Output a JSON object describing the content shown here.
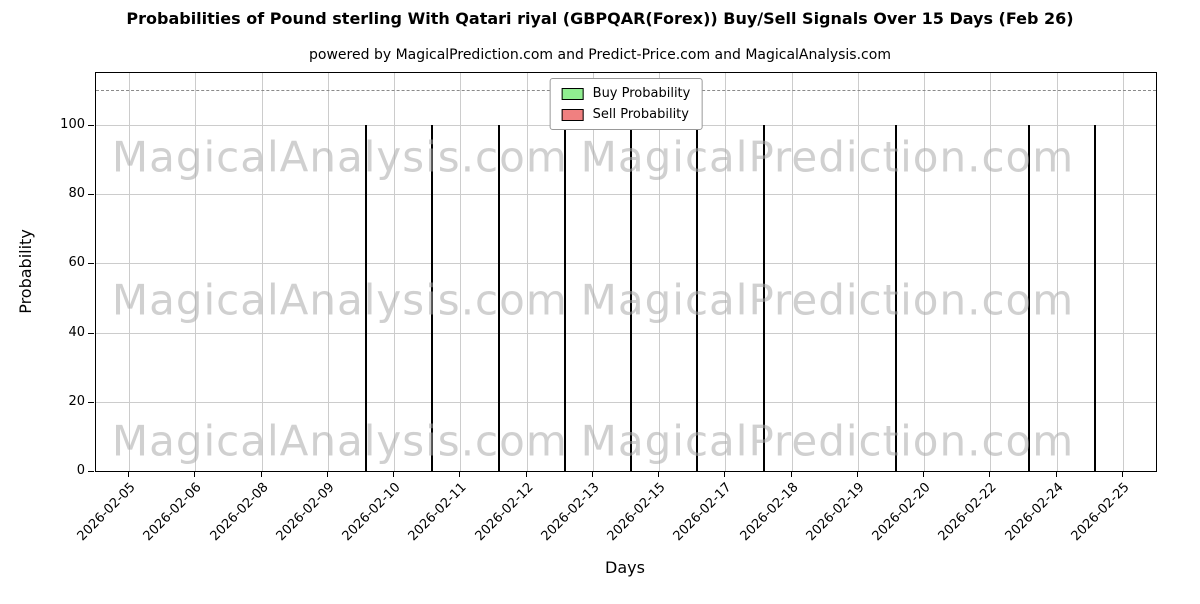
{
  "title": "Probabilities of Pound sterling With Qatari riyal (GBPQAR(Forex)) Buy/Sell Signals Over 15 Days (Feb 26)",
  "subtitle": "powered by MagicalPrediction.com and Predict-Price.com and MagicalAnalysis.com",
  "watermarks": {
    "left": "MagicalAnalysis.com",
    "right": "MagicalPrediction.com"
  },
  "legend": [
    {
      "label": "Buy Probability",
      "color": "#90EE90"
    },
    {
      "label": "Sell Probability",
      "color": "#F08080"
    }
  ],
  "chart_data": {
    "type": "bar",
    "title": "Probabilities of Pound sterling With Qatari riyal (GBPQAR(Forex)) Buy/Sell Signals Over 15 Days (Feb 26)",
    "xlabel": "Days",
    "ylabel": "Probability",
    "ylim": [
      0,
      115
    ],
    "yticks": [
      0,
      20,
      40,
      60,
      80,
      100
    ],
    "dashed_line_y": 110,
    "grid": true,
    "legend_position": "top-center",
    "categories": [
      "2026-02-05",
      "2026-02-06",
      "2026-02-08",
      "2026-02-09",
      "2026-02-10",
      "2026-02-11",
      "2026-02-12",
      "2026-02-13",
      "2026-02-15",
      "2026-02-17",
      "2026-02-18",
      "2026-02-19",
      "2026-02-20",
      "2026-02-22",
      "2026-02-24",
      "2026-02-25"
    ],
    "series": [
      {
        "name": "Buy Probability",
        "color": "#90EE90",
        "values": [
          0,
          0,
          0,
          0,
          100,
          100,
          100,
          100,
          100,
          100,
          100,
          0,
          100,
          0,
          100,
          0
        ]
      },
      {
        "name": "Sell Probability",
        "color": "#F08080",
        "values": [
          0,
          0,
          0,
          0,
          0,
          0,
          0,
          0,
          0,
          0,
          0,
          0,
          0,
          0,
          0,
          100
        ]
      }
    ]
  }
}
